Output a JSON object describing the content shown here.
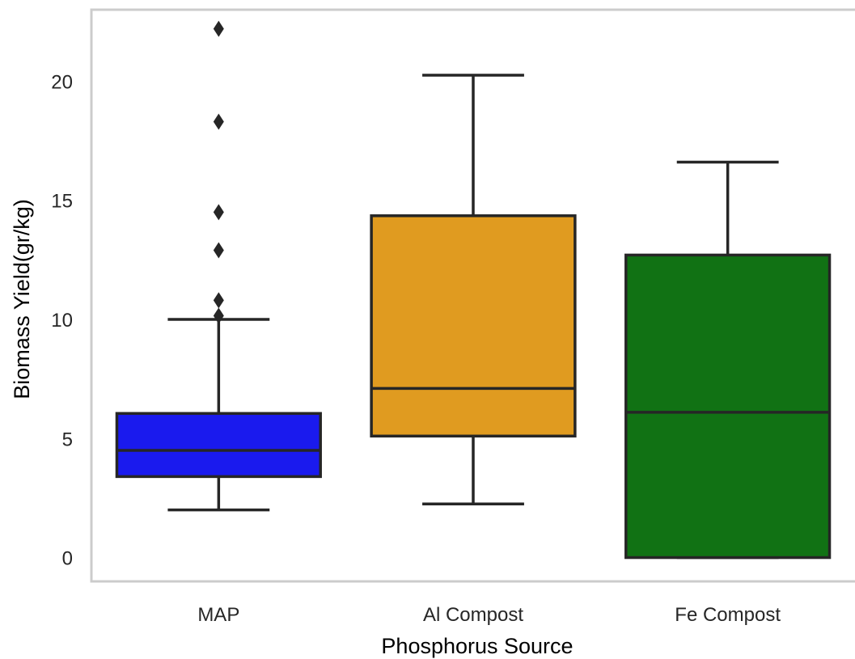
{
  "chart_data": {
    "type": "box",
    "title": "",
    "xlabel": "Phosphorus Source",
    "ylabel": "Biomass Yield(gr/kg)",
    "ylim": [
      -1.0,
      23.0
    ],
    "yticks": [
      0,
      5,
      10,
      15,
      20
    ],
    "grid": false,
    "categories": [
      "MAP",
      "Al Compost",
      "Fe Compost"
    ],
    "boxes": [
      {
        "category": "MAP",
        "color": "#1a1aee",
        "whisker_low": 2.0,
        "q1": 3.4,
        "median": 4.5,
        "q3": 6.05,
        "whisker_high": 10.0,
        "outliers": [
          10.15,
          10.8,
          12.9,
          14.5,
          18.3,
          22.2
        ]
      },
      {
        "category": "Al Compost",
        "color": "#e09b20",
        "whisker_low": 2.25,
        "q1": 5.1,
        "median": 7.1,
        "q3": 14.35,
        "whisker_high": 20.25,
        "outliers": []
      },
      {
        "category": "Fe Compost",
        "color": "#117214",
        "whisker_low": 0.0,
        "q1": 0.0,
        "median": 6.1,
        "q3": 12.7,
        "whisker_high": 16.6,
        "outliers": []
      }
    ],
    "line_color": "#262626",
    "frame_color": "#cccccc"
  }
}
